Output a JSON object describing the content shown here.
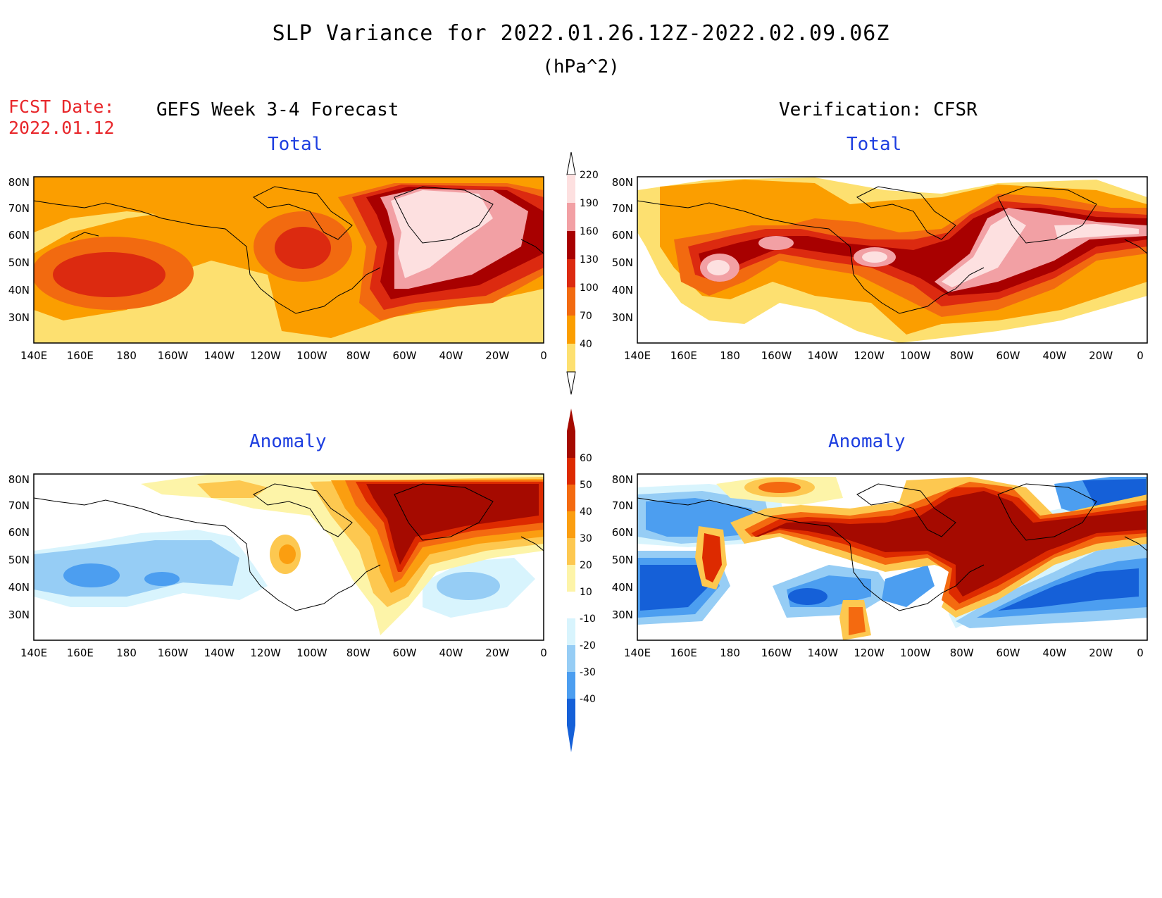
{
  "header": {
    "title": "SLP Variance for 2022.01.26.12Z-2022.02.09.06Z",
    "units": "(hPa^2)",
    "fcst_label": "FCST Date:",
    "fcst_date": "2022.01.12",
    "left_heading": "GEFS Week 3-4 Forecast",
    "right_heading": "Verification: CFSR"
  },
  "panels": {
    "forecast_total": {
      "title": "Total"
    },
    "verification_total": {
      "title": "Total"
    },
    "forecast_anomaly": {
      "title": "Anomaly"
    },
    "verification_anomaly": {
      "title": "Anomaly"
    }
  },
  "axes": {
    "lon_labels": [
      "140E",
      "160E",
      "180",
      "160W",
      "140W",
      "120W",
      "100W",
      "80W",
      "60W",
      "40W",
      "20W",
      "0"
    ],
    "lat_labels": [
      "80N",
      "70N",
      "60N",
      "50N",
      "40N",
      "30N"
    ]
  },
  "colorbars": {
    "total": {
      "labels": [
        "220",
        "190",
        "160",
        "130",
        "100",
        "70",
        "40"
      ],
      "colors": [
        "#fde0e0",
        "#f2a0a4",
        "#a80000",
        "#dc2a10",
        "#f26a10",
        "#fb9e00",
        "#fde070"
      ]
    },
    "anomaly": {
      "labels": [
        "60",
        "50",
        "40",
        "30",
        "20",
        "10",
        "-10",
        "-20",
        "-30",
        "-40"
      ],
      "colors": [
        "#a50a00",
        "#dd2a00",
        "#f46a10",
        "#fb9e10",
        "#fdc850",
        "#fdf4a8",
        "#ffffff",
        "#d8f4fd",
        "#96cdf5",
        "#4c9ef0",
        "#1560d8"
      ]
    }
  }
}
